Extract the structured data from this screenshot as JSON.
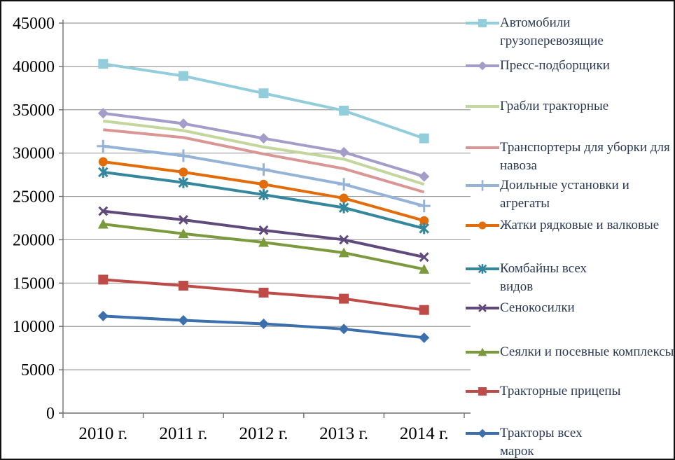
{
  "figure": {
    "background": "#ffffff",
    "border_color": "#111111"
  },
  "axes": {
    "y_tick_labels": [
      "0",
      "5000",
      "10000",
      "15000",
      "20000",
      "25000",
      "30000",
      "35000",
      "40000",
      "45000"
    ],
    "x_tick_labels": [
      "2010 г.",
      "2011 г.",
      "2012 г.",
      "2013 г.",
      "2014 г."
    ],
    "gridline_color": "#9c9c9c",
    "axis_color": "#6e6e6e",
    "tick_label_color": "#000000"
  },
  "legend": {
    "text_color": "#2b3b55",
    "position": "right"
  },
  "chart_data": {
    "type": "line",
    "title": "",
    "xlabel": "",
    "ylabel": "",
    "categories": [
      "2010 г.",
      "2011 г.",
      "2012 г.",
      "2013 г.",
      "2014 г."
    ],
    "ylim": [
      0,
      45000
    ],
    "y_step": 5000,
    "grid": true,
    "legend_position": "right",
    "series": [
      {
        "name": "Автомобили грузоперевозящие",
        "legend_label": "Автомобили\nгрузоперевозящие",
        "color": "#92CDDC",
        "marker": "square",
        "values": [
          40300,
          38900,
          36900,
          34900,
          31700
        ]
      },
      {
        "name": "Пресс-подборщики",
        "legend_label": "Пресс-подборщики",
        "color": "#A49CC9",
        "marker": "diamond",
        "values": [
          34600,
          33400,
          31700,
          30100,
          27300
        ]
      },
      {
        "name": "Грабли тракторные",
        "legend_label": "Грабли тракторные",
        "color": "#C3D69B",
        "marker": "none",
        "values": [
          33700,
          32600,
          30700,
          29300,
          26400
        ]
      },
      {
        "name": "Транспортеры для уборки для навоза",
        "legend_label": "Транспортеры для уборки для\nнавоза",
        "color": "#D99694",
        "marker": "none",
        "values": [
          32700,
          31800,
          29900,
          28200,
          25500
        ]
      },
      {
        "name": "Доильные установки и агрегаты",
        "legend_label": "Доильные установки и агрегаты",
        "color": "#95B3D7",
        "marker": "plus",
        "values": [
          30800,
          29700,
          28100,
          26400,
          23900
        ]
      },
      {
        "name": "Жатки рядковые и валковые",
        "legend_label": "Жатки рядковые и валковые",
        "color": "#E36C0A",
        "marker": "circle",
        "values": [
          29000,
          27800,
          26400,
          24800,
          22200
        ]
      },
      {
        "name": "Комбайны всех видов",
        "legend_label": "Комбайны всех\nвидов",
        "color": "#35879D",
        "marker": "star",
        "values": [
          27800,
          26600,
          25200,
          23700,
          21300
        ]
      },
      {
        "name": "Сенокосилки",
        "legend_label": "Сенокосилки",
        "color": "#604A7B",
        "marker": "x",
        "values": [
          23300,
          22300,
          21100,
          20000,
          18000
        ]
      },
      {
        "name": "Сеялки и посевные комплексы",
        "legend_label": "Сеялки и посевные комплексы",
        "color": "#7A9A3D",
        "marker": "triangle",
        "values": [
          21800,
          20700,
          19700,
          18500,
          16600
        ]
      },
      {
        "name": "Тракторные прицепы",
        "legend_label": "Тракторные прицепы",
        "color": "#BE4B48",
        "marker": "square",
        "values": [
          15400,
          14700,
          13900,
          13200,
          11900
        ]
      },
      {
        "name": "Тракторы всех марок",
        "legend_label": "Тракторы всех\nмарок",
        "color": "#3C6FAE",
        "marker": "diamond",
        "values": [
          11200,
          10700,
          10300,
          9700,
          8700
        ]
      }
    ]
  }
}
